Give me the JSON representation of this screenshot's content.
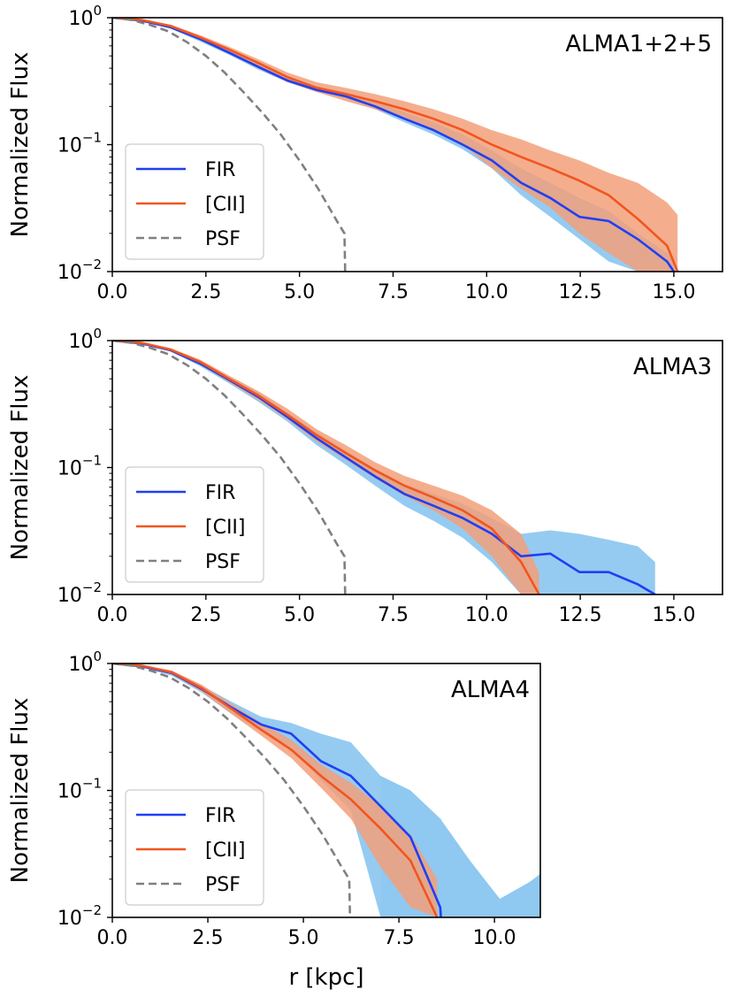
{
  "chart_data": [
    {
      "type": "line",
      "title": "ALMA1+2+5",
      "xlabel": "",
      "ylabel": "Normalized Flux",
      "xscale": "linear",
      "yscale": "log",
      "xlim": [
        0,
        16.3
      ],
      "ylim": [
        0.01,
        1
      ],
      "xticks": [
        0,
        2.5,
        5,
        7.5,
        10,
        12.5,
        15
      ],
      "xtick_labels": [
        "0.0",
        "2.5",
        "5.0",
        "7.5",
        "10.0",
        "12.5",
        "15.0"
      ],
      "yticks": [
        {
          "base": "10",
          "exp": "0",
          "value": 1
        },
        {
          "base": "10",
          "exp": "−1",
          "value": 0.1
        },
        {
          "base": "10",
          "exp": "−2",
          "value": 0.01
        }
      ],
      "legend": {
        "position": "lower-left",
        "entries": [
          "FIR",
          "[CII]",
          "PSF"
        ]
      },
      "series": [
        {
          "name": "FIR",
          "style": "solid",
          "color": "#1f3ff5",
          "x": [
            0,
            0.78,
            1.56,
            2.34,
            3.12,
            3.9,
            4.68,
            5.46,
            6.24,
            7.02,
            7.8,
            8.58,
            9.36,
            10.14,
            10.92,
            11.7,
            12.48,
            13.26,
            14.04,
            14.82,
            15.0
          ],
          "y": [
            1,
            0.95,
            0.84,
            0.68,
            0.53,
            0.41,
            0.32,
            0.27,
            0.24,
            0.2,
            0.16,
            0.13,
            0.1,
            0.075,
            0.05,
            0.038,
            0.027,
            0.025,
            0.018,
            0.012,
            0.01
          ],
          "band_low": [
            1,
            0.94,
            0.82,
            0.65,
            0.51,
            0.39,
            0.31,
            0.26,
            0.23,
            0.19,
            0.15,
            0.12,
            0.092,
            0.065,
            0.04,
            0.027,
            0.018,
            0.012,
            0.01,
            0.01,
            0.01
          ],
          "band_high": [
            1,
            0.96,
            0.86,
            0.7,
            0.56,
            0.44,
            0.34,
            0.29,
            0.26,
            0.22,
            0.18,
            0.15,
            0.12,
            0.09,
            0.065,
            0.05,
            0.038,
            0.03,
            0.02,
            0.014,
            0.012
          ]
        },
        {
          "name": "[CII]",
          "style": "solid",
          "color": "#f2551f",
          "x": [
            0,
            0.78,
            1.56,
            2.34,
            3.12,
            3.9,
            4.68,
            5.46,
            6.24,
            7.02,
            7.8,
            8.58,
            9.36,
            10.14,
            10.92,
            11.7,
            12.48,
            13.26,
            14.04,
            14.82,
            15.1
          ],
          "y": [
            1,
            0.96,
            0.86,
            0.7,
            0.56,
            0.44,
            0.34,
            0.28,
            0.25,
            0.22,
            0.19,
            0.16,
            0.13,
            0.1,
            0.08,
            0.065,
            0.052,
            0.04,
            0.026,
            0.016,
            0.01
          ],
          "band_low": [
            1,
            0.95,
            0.83,
            0.67,
            0.52,
            0.4,
            0.31,
            0.26,
            0.22,
            0.19,
            0.16,
            0.13,
            0.1,
            0.065,
            0.045,
            0.032,
            0.02,
            0.014,
            0.01,
            0.01,
            0.01
          ],
          "band_high": [
            1,
            0.97,
            0.88,
            0.73,
            0.59,
            0.47,
            0.37,
            0.31,
            0.28,
            0.25,
            0.22,
            0.19,
            0.16,
            0.13,
            0.11,
            0.09,
            0.075,
            0.06,
            0.05,
            0.035,
            0.028
          ]
        },
        {
          "name": "PSF",
          "style": "dashed",
          "color": "#808080",
          "x": [
            0,
            0.5,
            1,
            1.5,
            2,
            2.5,
            3,
            3.5,
            4,
            4.5,
            5,
            5.5,
            6,
            6.2,
            6.22
          ],
          "y": [
            1,
            0.96,
            0.88,
            0.78,
            0.64,
            0.5,
            0.37,
            0.26,
            0.18,
            0.12,
            0.075,
            0.045,
            0.025,
            0.02,
            0.01
          ]
        }
      ]
    },
    {
      "type": "line",
      "title": "ALMA3",
      "xlabel": "",
      "ylabel": "Normalized Flux",
      "xscale": "linear",
      "yscale": "log",
      "xlim": [
        0,
        16.3
      ],
      "ylim": [
        0.01,
        1
      ],
      "xticks": [
        0,
        2.5,
        5,
        7.5,
        10,
        12.5,
        15
      ],
      "xtick_labels": [
        "0.0",
        "2.5",
        "5.0",
        "7.5",
        "10.0",
        "12.5",
        "15.0"
      ],
      "yticks": [
        {
          "base": "10",
          "exp": "0",
          "value": 1
        },
        {
          "base": "10",
          "exp": "−1",
          "value": 0.1
        },
        {
          "base": "10",
          "exp": "−2",
          "value": 0.01
        }
      ],
      "legend": {
        "position": "lower-left",
        "entries": [
          "FIR",
          "[CII]",
          "PSF"
        ]
      },
      "series": [
        {
          "name": "FIR",
          "style": "solid",
          "color": "#1f3ff5",
          "x": [
            0,
            0.78,
            1.56,
            2.34,
            3.12,
            3.9,
            4.68,
            5.46,
            6.24,
            7.02,
            7.8,
            8.58,
            9.36,
            10.14,
            10.92,
            11.7,
            12.48,
            13.26,
            14.04,
            14.5
          ],
          "y": [
            1,
            0.95,
            0.84,
            0.66,
            0.49,
            0.36,
            0.25,
            0.17,
            0.12,
            0.085,
            0.062,
            0.05,
            0.04,
            0.03,
            0.02,
            0.021,
            0.015,
            0.015,
            0.012,
            0.01
          ],
          "band_low": [
            1,
            0.94,
            0.82,
            0.63,
            0.46,
            0.33,
            0.23,
            0.15,
            0.105,
            0.072,
            0.05,
            0.038,
            0.028,
            0.018,
            0.01,
            0.01,
            0.01,
            0.01,
            0.01,
            0.01
          ],
          "band_high": [
            1,
            0.96,
            0.86,
            0.69,
            0.52,
            0.39,
            0.27,
            0.19,
            0.135,
            0.098,
            0.074,
            0.062,
            0.052,
            0.04,
            0.03,
            0.032,
            0.03,
            0.027,
            0.024,
            0.018
          ]
        },
        {
          "name": "[CII]",
          "style": "solid",
          "color": "#f2551f",
          "x": [
            0,
            0.78,
            1.56,
            2.34,
            3.12,
            3.9,
            4.68,
            5.46,
            6.24,
            7.02,
            7.8,
            8.58,
            9.36,
            10.14,
            10.92,
            11.4
          ],
          "y": [
            1,
            0.96,
            0.85,
            0.68,
            0.5,
            0.37,
            0.26,
            0.18,
            0.13,
            0.095,
            0.072,
            0.058,
            0.046,
            0.033,
            0.018,
            0.01
          ],
          "band_low": [
            1,
            0.95,
            0.83,
            0.65,
            0.47,
            0.34,
            0.24,
            0.16,
            0.115,
            0.082,
            0.06,
            0.046,
            0.033,
            0.02,
            0.01,
            0.01
          ],
          "band_high": [
            1,
            0.97,
            0.87,
            0.71,
            0.53,
            0.4,
            0.29,
            0.2,
            0.15,
            0.11,
            0.086,
            0.072,
            0.06,
            0.046,
            0.03,
            0.015
          ]
        },
        {
          "name": "PSF",
          "style": "dashed",
          "color": "#808080",
          "x": [
            0,
            0.5,
            1,
            1.5,
            2,
            2.5,
            3,
            3.5,
            4,
            4.5,
            5,
            5.5,
            6,
            6.2,
            6.22
          ],
          "y": [
            1,
            0.96,
            0.88,
            0.78,
            0.64,
            0.5,
            0.37,
            0.26,
            0.18,
            0.12,
            0.075,
            0.045,
            0.025,
            0.02,
            0.01
          ]
        }
      ]
    },
    {
      "type": "line",
      "title": "ALMA4",
      "xlabel": "r [kpc]",
      "ylabel": "Normalized Flux",
      "xscale": "linear",
      "yscale": "log",
      "xlim": [
        0,
        11.2
      ],
      "ylim": [
        0.01,
        1
      ],
      "xticks": [
        0,
        2.5,
        5,
        7.5,
        10
      ],
      "xtick_labels": [
        "0.0",
        "2.5",
        "5.0",
        "7.5",
        "10.0"
      ],
      "yticks": [
        {
          "base": "10",
          "exp": "0",
          "value": 1
        },
        {
          "base": "10",
          "exp": "−1",
          "value": 0.1
        },
        {
          "base": "10",
          "exp": "−2",
          "value": 0.01
        }
      ],
      "legend": {
        "position": "lower-left",
        "entries": [
          "FIR",
          "[CII]",
          "PSF"
        ]
      },
      "series": [
        {
          "name": "FIR",
          "style": "solid",
          "color": "#1f3ff5",
          "x": [
            0,
            0.78,
            1.56,
            2.34,
            3.12,
            3.9,
            4.68,
            5.46,
            6.24,
            7.02,
            7.8,
            8.58,
            8.6
          ],
          "y": [
            1,
            0.95,
            0.84,
            0.63,
            0.45,
            0.33,
            0.28,
            0.17,
            0.13,
            0.075,
            0.043,
            0.012,
            0.01
          ],
          "band_low": [
            1,
            0.93,
            0.8,
            0.59,
            0.4,
            0.29,
            0.22,
            0.12,
            0.07,
            0.01,
            0.01,
            0.01,
            0.01
          ],
          "band_high": [
            1,
            0.97,
            0.88,
            0.67,
            0.5,
            0.38,
            0.34,
            0.28,
            0.24,
            0.13,
            0.1,
            0.06,
            0.06
          ],
          "band_tail_x": [
            7.02,
            7.8,
            8.58,
            9.36,
            10.14,
            10.92,
            11.2
          ],
          "band_tail_high": [
            0.13,
            0.1,
            0.06,
            0.028,
            0.014,
            0.019,
            0.022
          ]
        },
        {
          "name": "[CII]",
          "style": "solid",
          "color": "#f2551f",
          "x": [
            0,
            0.78,
            1.56,
            2.34,
            3.12,
            3.9,
            4.68,
            5.46,
            6.24,
            7.02,
            7.8,
            8.5
          ],
          "y": [
            1,
            0.96,
            0.85,
            0.64,
            0.44,
            0.3,
            0.21,
            0.13,
            0.085,
            0.05,
            0.028,
            0.01
          ],
          "band_low": [
            1,
            0.95,
            0.82,
            0.6,
            0.4,
            0.27,
            0.18,
            0.105,
            0.06,
            0.025,
            0.012,
            0.01
          ],
          "band_high": [
            1,
            0.97,
            0.88,
            0.68,
            0.48,
            0.34,
            0.25,
            0.16,
            0.115,
            0.075,
            0.045,
            0.02
          ]
        },
        {
          "name": "PSF",
          "style": "dashed",
          "color": "#808080",
          "x": [
            0,
            0.5,
            1,
            1.5,
            2,
            2.5,
            3,
            3.5,
            4,
            4.5,
            5,
            5.5,
            6,
            6.2,
            6.22
          ],
          "y": [
            1,
            0.96,
            0.88,
            0.78,
            0.64,
            0.5,
            0.37,
            0.26,
            0.18,
            0.12,
            0.075,
            0.045,
            0.025,
            0.02,
            0.01
          ]
        }
      ]
    }
  ],
  "colors": {
    "fir_line": "#1f3ff5",
    "fir_band": "#8fc8f0",
    "cii_line": "#f2551f",
    "cii_band": "#f2a07a",
    "psf_line": "#808080"
  }
}
